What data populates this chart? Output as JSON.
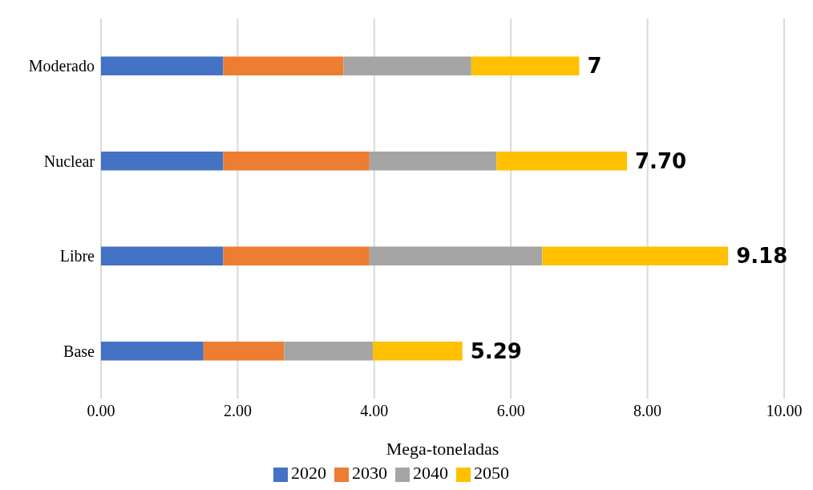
{
  "chart_data": {
    "type": "bar",
    "orientation": "horizontal",
    "stacked": true,
    "xlabel": "Mega-toneladas",
    "categories": [
      "Moderado",
      "Nuclear",
      "Libre",
      "Base"
    ],
    "series": [
      {
        "name": "2020",
        "color": "#4472c4",
        "values": [
          1.79,
          1.79,
          1.79,
          1.5
        ]
      },
      {
        "name": "2030",
        "color": "#ed7d31",
        "values": [
          1.76,
          2.14,
          2.14,
          1.18
        ]
      },
      {
        "name": "2040",
        "color": "#a5a5a5",
        "values": [
          1.87,
          1.86,
          2.53,
          1.3
        ]
      },
      {
        "name": "2050",
        "color": "#ffc000",
        "values": [
          1.58,
          1.91,
          2.72,
          1.31
        ]
      }
    ],
    "totals": [
      "7",
      "7.70",
      "9.18",
      "5.29"
    ],
    "xlim": [
      0,
      10
    ],
    "xticks": [
      {
        "value": 0,
        "label": "0.00"
      },
      {
        "value": 2,
        "label": "2.00"
      },
      {
        "value": 4,
        "label": "4.00"
      },
      {
        "value": 6,
        "label": "6.00"
      },
      {
        "value": 8,
        "label": "8.00"
      },
      {
        "value": 10,
        "label": "10.00"
      }
    ],
    "grid": "x",
    "legend": "bottom"
  }
}
